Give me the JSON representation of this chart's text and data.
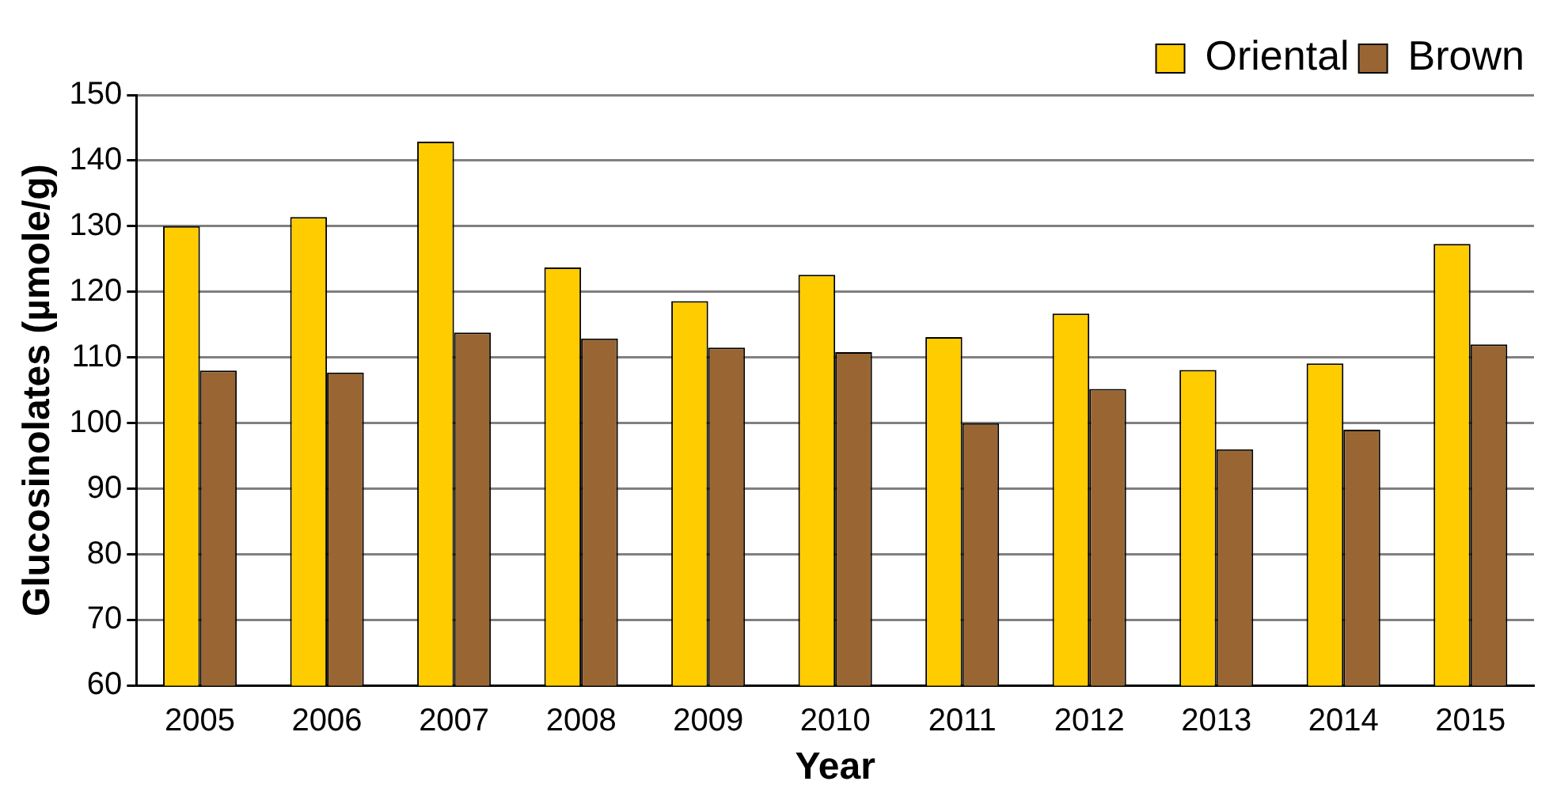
{
  "chart_data": {
    "type": "bar",
    "xlabel": "Year",
    "ylabel": "Glucosinolates (µmole/g)",
    "categories": [
      "2005",
      "2006",
      "2007",
      "2008",
      "2009",
      "2010",
      "2011",
      "2012",
      "2013",
      "2014",
      "2015"
    ],
    "series": [
      {
        "name": "Oriental",
        "color": "#ffcc00",
        "values": [
          130,
          131.4,
          142.9,
          123.7,
          118.6,
          122.6,
          113.1,
          116.7,
          108.1,
          109.1,
          127.3
        ]
      },
      {
        "name": "Brown",
        "color": "#996633",
        "values": [
          108,
          107.7,
          113.8,
          112.9,
          111.5,
          110.8,
          100,
          105.2,
          96,
          99,
          112
        ]
      }
    ],
    "ylim": [
      60,
      150
    ],
    "yticks": [
      60,
      70,
      80,
      90,
      100,
      110,
      120,
      130,
      140,
      150
    ],
    "grid": "y",
    "legend": "top right"
  }
}
